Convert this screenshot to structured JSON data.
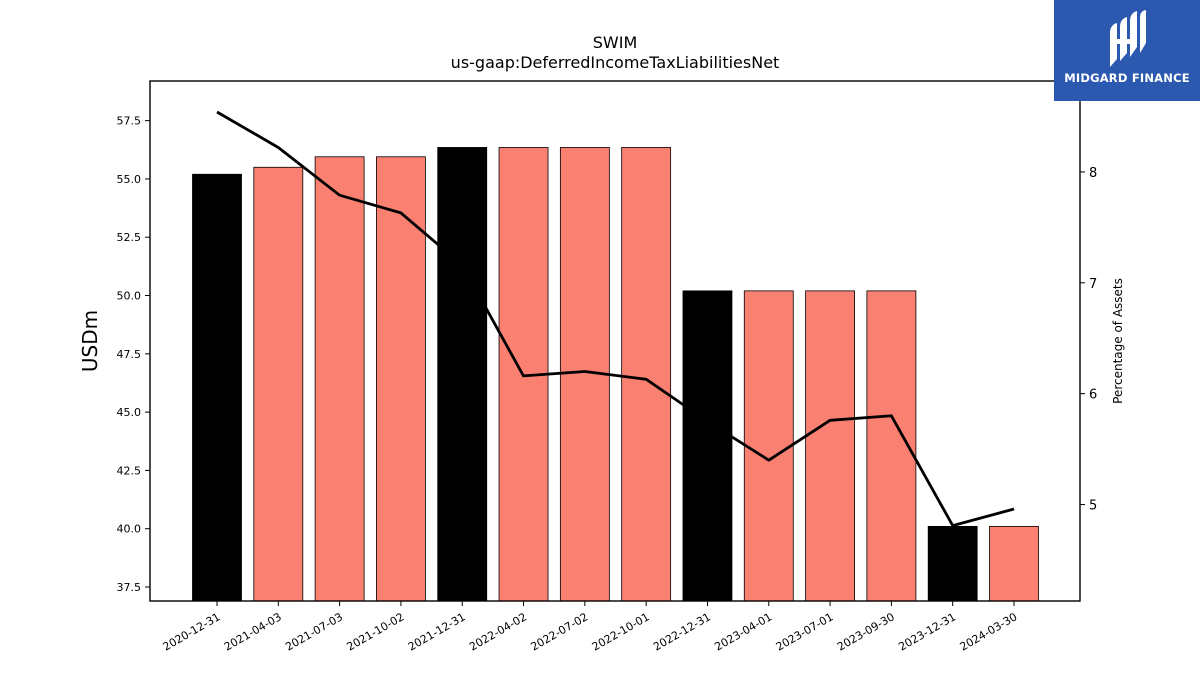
{
  "logo": {
    "text": "MIDGARD FINANCE"
  },
  "chart_data": {
    "type": "bar",
    "title": "SWIM",
    "subtitle": "us-gaap:DeferredIncomeTaxLiabilitiesNet",
    "ylabel": "USDm",
    "y2label": "Percentage of Assets",
    "categories": [
      "2020-12-31",
      "2021-04-03",
      "2021-07-03",
      "2021-10-02",
      "2021-12-31",
      "2022-04-02",
      "2022-07-02",
      "2022-10-01",
      "2022-12-31",
      "2023-04-01",
      "2023-07-01",
      "2023-09-30",
      "2023-12-31",
      "2024-03-30"
    ],
    "series": [
      {
        "type": "bar",
        "axis": "left",
        "values": [
          55.2,
          55.5,
          55.95,
          55.95,
          56.35,
          56.35,
          56.35,
          56.35,
          50.2,
          50.2,
          50.2,
          50.2,
          40.1,
          40.1
        ],
        "colors": [
          "#000000",
          "#fa8072",
          "#fa8072",
          "#fa8072",
          "#000000",
          "#fa8072",
          "#fa8072",
          "#fa8072",
          "#000000",
          "#fa8072",
          "#fa8072",
          "#fa8072",
          "#000000",
          "#fa8072"
        ]
      },
      {
        "type": "line",
        "axis": "right",
        "color": "#000000",
        "values": [
          8.54,
          8.22,
          7.79,
          7.63,
          7.16,
          6.16,
          6.2,
          6.13,
          5.75,
          5.4,
          5.76,
          5.8,
          4.81,
          4.96
        ]
      }
    ],
    "ylim": [
      36.9,
      59.2
    ],
    "y2lim": [
      4.13,
      8.82
    ],
    "yticks": [
      "37.5",
      "40.0",
      "42.5",
      "45.0",
      "47.5",
      "50.0",
      "52.5",
      "55.0",
      "57.5"
    ],
    "y2ticks": [
      "5",
      "6",
      "7",
      "8"
    ],
    "grid": false
  }
}
